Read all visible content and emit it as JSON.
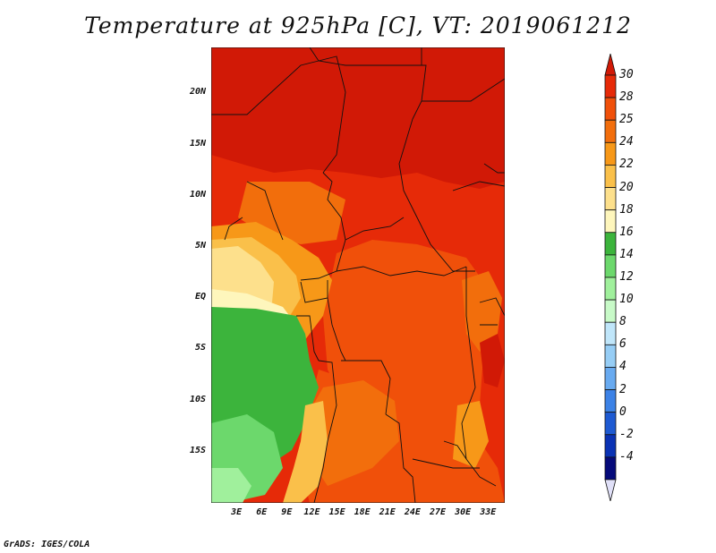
{
  "title": "Temperature at 925hPa [C], VT: 2019061212",
  "credit": "GrADS: IGES/COLA",
  "axes": {
    "lat_ticks": [
      {
        "label": "20N",
        "value": 20
      },
      {
        "label": "15N",
        "value": 15
      },
      {
        "label": "10N",
        "value": 10
      },
      {
        "label": "5N",
        "value": 5
      },
      {
        "label": "EQ",
        "value": 0
      },
      {
        "label": "5S",
        "value": -5
      },
      {
        "label": "10S",
        "value": -10
      },
      {
        "label": "15S",
        "value": -15
      }
    ],
    "lon_ticks": [
      {
        "label": "3E",
        "value": 3
      },
      {
        "label": "6E",
        "value": 6
      },
      {
        "label": "9E",
        "value": 9
      },
      {
        "label": "12E",
        "value": 12
      },
      {
        "label": "15E",
        "value": 15
      },
      {
        "label": "18E",
        "value": 18
      },
      {
        "label": "21E",
        "value": 21
      },
      {
        "label": "24E",
        "value": 24
      },
      {
        "label": "27E",
        "value": 27
      },
      {
        "label": "30E",
        "value": 30
      },
      {
        "label": "33E",
        "value": 33
      }
    ],
    "lon_range": [
      0,
      35
    ],
    "lat_range": [
      -20,
      24.5
    ]
  },
  "colorbar": {
    "labels": [
      "30",
      "28",
      "25",
      "24",
      "22",
      "20",
      "18",
      "16",
      "14",
      "12",
      "10",
      "8",
      "6",
      "4",
      "2",
      "0",
      "-2",
      "-4"
    ],
    "colors": [
      "#d11906",
      "#e62a08",
      "#f0500a",
      "#f26e0c",
      "#f79818",
      "#fac04a",
      "#fde08c",
      "#fef6bc",
      "#3cb43c",
      "#6cd86c",
      "#a0f09c",
      "#c8fac8",
      "#c0e6fa",
      "#96cdf5",
      "#68aaf0",
      "#3c82e6",
      "#1e5ad2",
      "#0a32b4",
      "#050a7a",
      "#e0e0f8"
    ]
  }
}
